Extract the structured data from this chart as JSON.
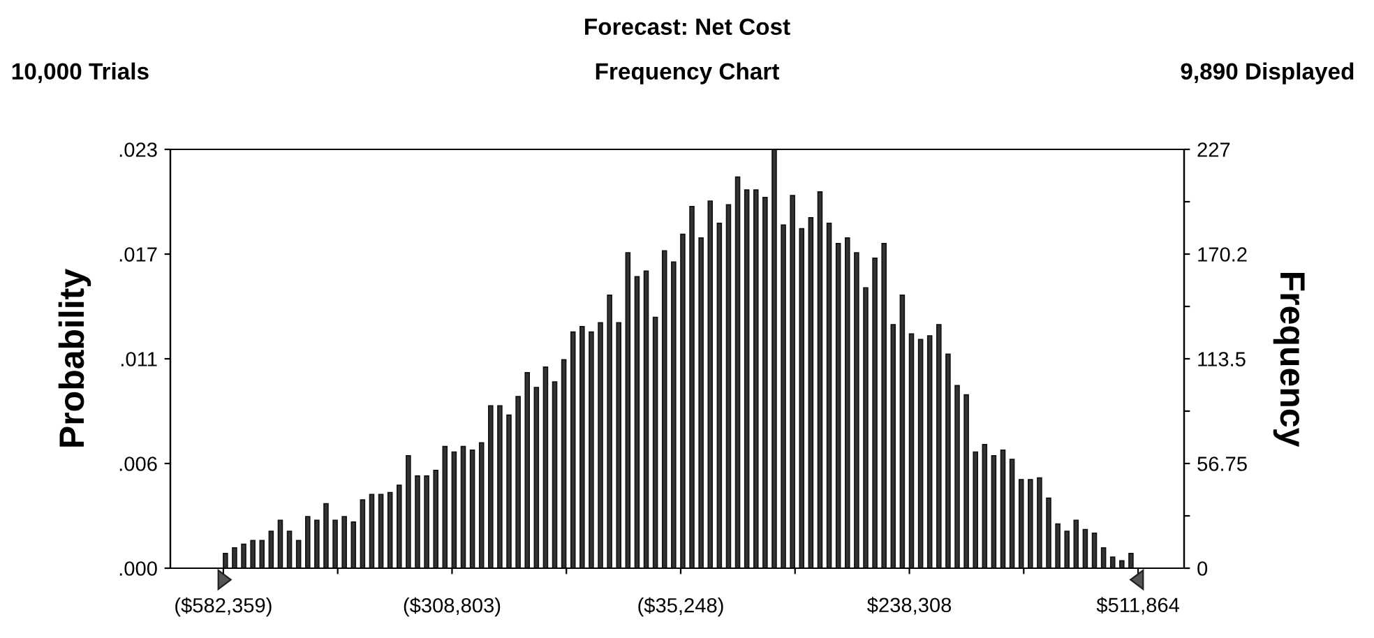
{
  "chart_data": {
    "type": "histogram",
    "title": "Forecast: Net Cost",
    "subtitle": "Frequency Chart",
    "annotations": [
      "10,000 Trials",
      "9,890 Displayed"
    ],
    "ylabel": "Probability",
    "y2label": "Frequency",
    "bins": [
      -582359,
      -571417,
      -560475,
      -549532,
      -538590,
      -527648,
      -516706,
      -505763,
      -494821,
      -483879,
      -472937,
      -461994,
      -451052,
      -440110,
      -429168,
      -418226,
      -407283,
      -396341,
      -385399,
      -374457,
      -363514,
      -352572,
      -341630,
      -330688,
      -319745,
      -308803,
      -297861,
      -286919,
      -275976,
      -265034,
      -254092,
      -243150,
      -232207,
      -221265,
      -210323,
      -199381,
      -188438,
      -177496,
      -166554,
      -155612,
      -144670,
      -133727,
      -122785,
      -111843,
      -100901,
      -89958,
      -79016,
      -68074,
      -57132,
      -46189,
      -35248,
      -24306,
      -13364,
      -2421,
      8521,
      19463,
      30405,
      41348,
      52290,
      63232,
      74174,
      85117,
      96059,
      107001,
      117943,
      128885,
      139828,
      150770,
      161712,
      172654,
      183597,
      194539,
      205481,
      216423,
      227366,
      238308,
      249250,
      260192,
      271135,
      282077,
      293019,
      303961,
      314904,
      325846,
      336788,
      347730,
      358673,
      369615,
      380557,
      391499,
      402441,
      413384,
      424326,
      435268,
      446210,
      457153,
      468095,
      479037,
      489979,
      500922,
      511864
    ],
    "series": [
      {
        "axis": "y2",
        "color": "#333333",
        "values": [
          8,
          11,
          13,
          15,
          15,
          20,
          26,
          20,
          15,
          28,
          26,
          35,
          26,
          28,
          25,
          37,
          40,
          40,
          41,
          45,
          61,
          50,
          50,
          53,
          66,
          63,
          66,
          64,
          68,
          88,
          88,
          83,
          93,
          106,
          98,
          109,
          101,
          113,
          128,
          131,
          128,
          133,
          148,
          133,
          171,
          158,
          161,
          136,
          172,
          166,
          181,
          196,
          179,
          199,
          187,
          197,
          212,
          205,
          205,
          201,
          227,
          186,
          202,
          184,
          190,
          204,
          187,
          176,
          179,
          171,
          152,
          168,
          176,
          132,
          148,
          127,
          124,
          126,
          132,
          116,
          99,
          94,
          63,
          67,
          61,
          64,
          59,
          48,
          48,
          49,
          38,
          24,
          20,
          26,
          21,
          19,
          11,
          6,
          4,
          8
        ]
      }
    ],
    "xlim": [
      -645750,
      566910
    ],
    "xticks": [
      {
        "value": -582359,
        "label": "($582,359)"
      },
      {
        "value": -445581,
        "label": null
      },
      {
        "value": -308803,
        "label": "($308,803)"
      },
      {
        "value": -172025,
        "label": null
      },
      {
        "value": -35248,
        "label": "($35,248)"
      },
      {
        "value": 101530,
        "label": null
      },
      {
        "value": 238308,
        "label": "$238,308"
      },
      {
        "value": 375086,
        "label": null
      },
      {
        "value": 511864,
        "label": "$511,864"
      }
    ],
    "ylim": [
      0,
      0.022953
    ],
    "yticks": [
      {
        "value": 0,
        "label": ".000"
      },
      {
        "value": 0.005738,
        "label": ".006"
      },
      {
        "value": 0.011476,
        "label": ".011"
      },
      {
        "value": 0.017214,
        "label": ".017"
      },
      {
        "value": 0.022953,
        "label": ".023"
      }
    ],
    "y2lim": [
      0,
      227
    ],
    "y2ticks": [
      0,
      {
        "value": 28.375,
        "label": null
      },
      56.75,
      {
        "value": 85.125,
        "label": null
      },
      113.5,
      {
        "value": 141.875,
        "label": null
      },
      {
        "value": 170.25,
        "label": "170.2"
      },
      {
        "value": 198.625,
        "label": null
      },
      227
    ],
    "grid": false,
    "legend": false
  }
}
